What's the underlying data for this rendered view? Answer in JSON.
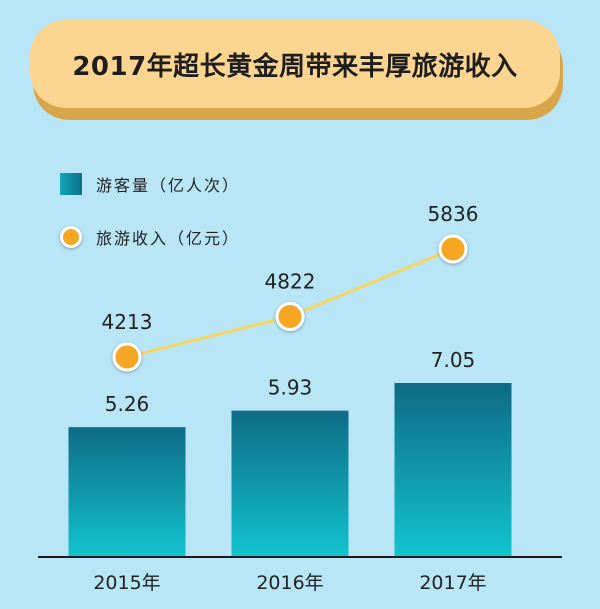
{
  "title": "2017年超长黄金周带来丰厚旅游收入",
  "legend": [
    {
      "label": "游客量（亿人次）",
      "kind": "bar"
    },
    {
      "label": "旅游收入（亿元）",
      "kind": "line"
    }
  ],
  "colors": {
    "background": "#b8e6f7",
    "bar_top": "#0e6b85",
    "bar_bottom": "#12c4cf",
    "line": "#f7d55f",
    "dot": "#f5a623",
    "title_bg": "#fcd691",
    "title_shadow": "#d8a64a"
  },
  "chart_data": {
    "type": "bar",
    "categories": [
      "2015年",
      "2016年",
      "2017年"
    ],
    "series": [
      {
        "name": "游客量（亿人次）",
        "type": "bar",
        "values": [
          5.26,
          5.93,
          7.05
        ],
        "labels": [
          "5.26",
          "5.93",
          "7.05"
        ]
      },
      {
        "name": "旅游收入（亿元）",
        "type": "line",
        "values": [
          4213,
          4822,
          5836
        ],
        "labels": [
          "4213",
          "4822",
          "5836"
        ]
      }
    ],
    "xlabel": "",
    "ylabel": "",
    "grid": false,
    "legend_position": "top-left"
  }
}
